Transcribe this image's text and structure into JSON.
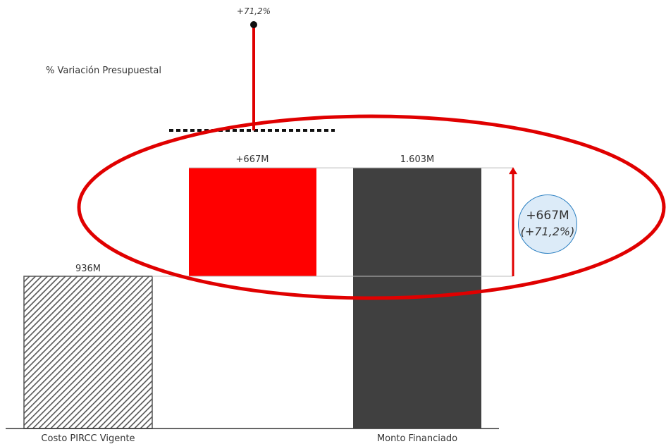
{
  "chart_data": {
    "type": "bar",
    "subtype": "waterfall",
    "categories": [
      "Costo PIRCC Vigente",
      "",
      "Monto Financiado"
    ],
    "values": [
      936,
      667,
      1603
    ],
    "data_labels": [
      "936M",
      "+667M",
      "1.603M"
    ],
    "ylim": [
      0,
      2250
    ],
    "title": "",
    "xlabel": "",
    "ylabel": "",
    "grid": false,
    "colors": {
      "base_bar": "#555555",
      "increase_bar": "#ff0000",
      "total_bar": "#404040",
      "annotation": "#e00000",
      "callout_fill": "#dcebf8",
      "callout_border": "#2a7fc1"
    }
  },
  "variation": {
    "label": "% Variación Presupuestal",
    "value_pct": 71.2,
    "value_text": "+71,2%"
  },
  "callout": {
    "amount": "+667M",
    "percent": "(+71,2%)"
  }
}
